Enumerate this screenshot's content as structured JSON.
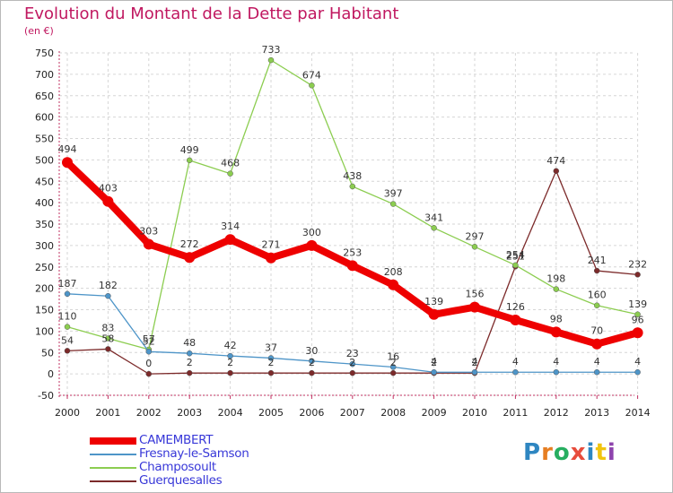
{
  "title": "Evolution du Montant de la Dette par Habitant",
  "unit": "(en €)",
  "logo": {
    "letters": [
      "P",
      "r",
      "o",
      "x",
      "i",
      "t",
      "i"
    ],
    "colors": [
      "#2e86c1",
      "#e67e22",
      "#27ae60",
      "#e74c3c",
      "#2e86c1",
      "#f1c40f",
      "#8e44ad"
    ]
  },
  "chart_data": {
    "type": "line",
    "title": "Evolution du Montant de la Dette par Habitant",
    "subtitle": "(en €)",
    "x": [
      "2000",
      "2001",
      "2002",
      "2003",
      "2004",
      "2005",
      "2006",
      "2007",
      "2008",
      "2009",
      "2010",
      "2011",
      "2012",
      "2013",
      "2014"
    ],
    "ylim": [
      -50,
      750
    ],
    "yticks": [
      -50,
      0,
      50,
      100,
      150,
      200,
      250,
      300,
      350,
      400,
      450,
      500,
      550,
      600,
      650,
      700,
      750
    ],
    "grid": true,
    "legend": "bottom-left",
    "series": [
      {
        "name": "CAMEMBERT",
        "color": "#ee0000",
        "values": [
          494,
          403,
          303,
          272,
          314,
          271,
          300,
          253,
          208,
          139,
          156,
          126,
          98,
          70,
          96
        ],
        "labels": [
          "494",
          "403",
          "303",
          "272",
          "314",
          "271",
          "300",
          "253",
          "208",
          "139",
          "156",
          "126",
          "98",
          "70",
          "96"
        ]
      },
      {
        "name": "Fresnay-le-Samson",
        "color": "#4e95c8",
        "values": [
          187,
          182,
          52,
          48,
          42,
          37,
          30,
          23,
          16,
          4,
          4,
          4,
          4,
          4,
          4
        ],
        "labels": [
          "187",
          "182",
          "52",
          "48",
          "42",
          "37",
          "30",
          "23",
          "16",
          "4",
          "4",
          "4",
          "4",
          "4",
          "4"
        ]
      },
      {
        "name": "Champosoult",
        "color": "#8ccd50",
        "values": [
          110,
          83,
          57,
          499,
          468,
          733,
          674,
          438,
          397,
          341,
          297,
          254,
          198,
          160,
          139
        ],
        "labels": [
          "110",
          "83",
          "57",
          "499",
          "468",
          "733",
          "674",
          "438",
          "397",
          "341",
          "297",
          "254",
          "198",
          "160",
          "139"
        ]
      },
      {
        "name": "Guerquesalles",
        "color": "#7c2a2a",
        "values": [
          54,
          58,
          0,
          2,
          2,
          2,
          2,
          2,
          2,
          2,
          2,
          251,
          474,
          241,
          232
        ],
        "labels": [
          "54",
          "58",
          "0",
          "2",
          "2",
          "2",
          "2",
          "2",
          "2",
          "2",
          "2",
          "251",
          "474",
          "241",
          "232"
        ]
      }
    ]
  }
}
